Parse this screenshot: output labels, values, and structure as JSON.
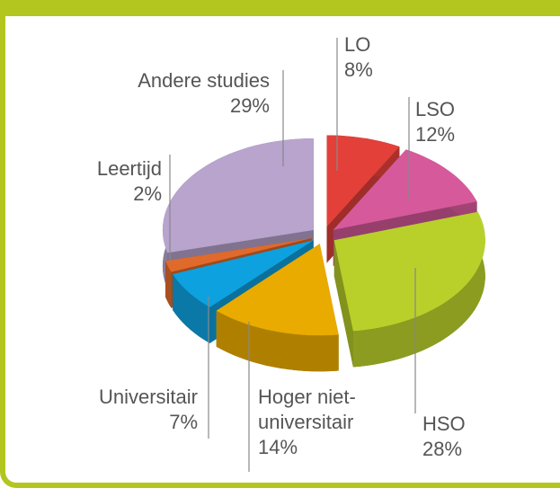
{
  "chart_data": {
    "type": "pie",
    "categories": [
      "LO",
      "LSO",
      "HSO",
      "Hoger niet-universitair",
      "Universitair",
      "Leertijd",
      "Andere studies"
    ],
    "values": [
      8,
      12,
      28,
      14,
      7,
      2,
      29
    ],
    "value_labels": [
      "8%",
      "12%",
      "28%",
      "14%",
      "7%",
      "2%",
      "29%"
    ],
    "colors": [
      "#e3403a",
      "#d65a9b",
      "#b9d02a",
      "#e9ab00",
      "#0ea1df",
      "#e06a2b",
      "#b8a4cd"
    ]
  }
}
